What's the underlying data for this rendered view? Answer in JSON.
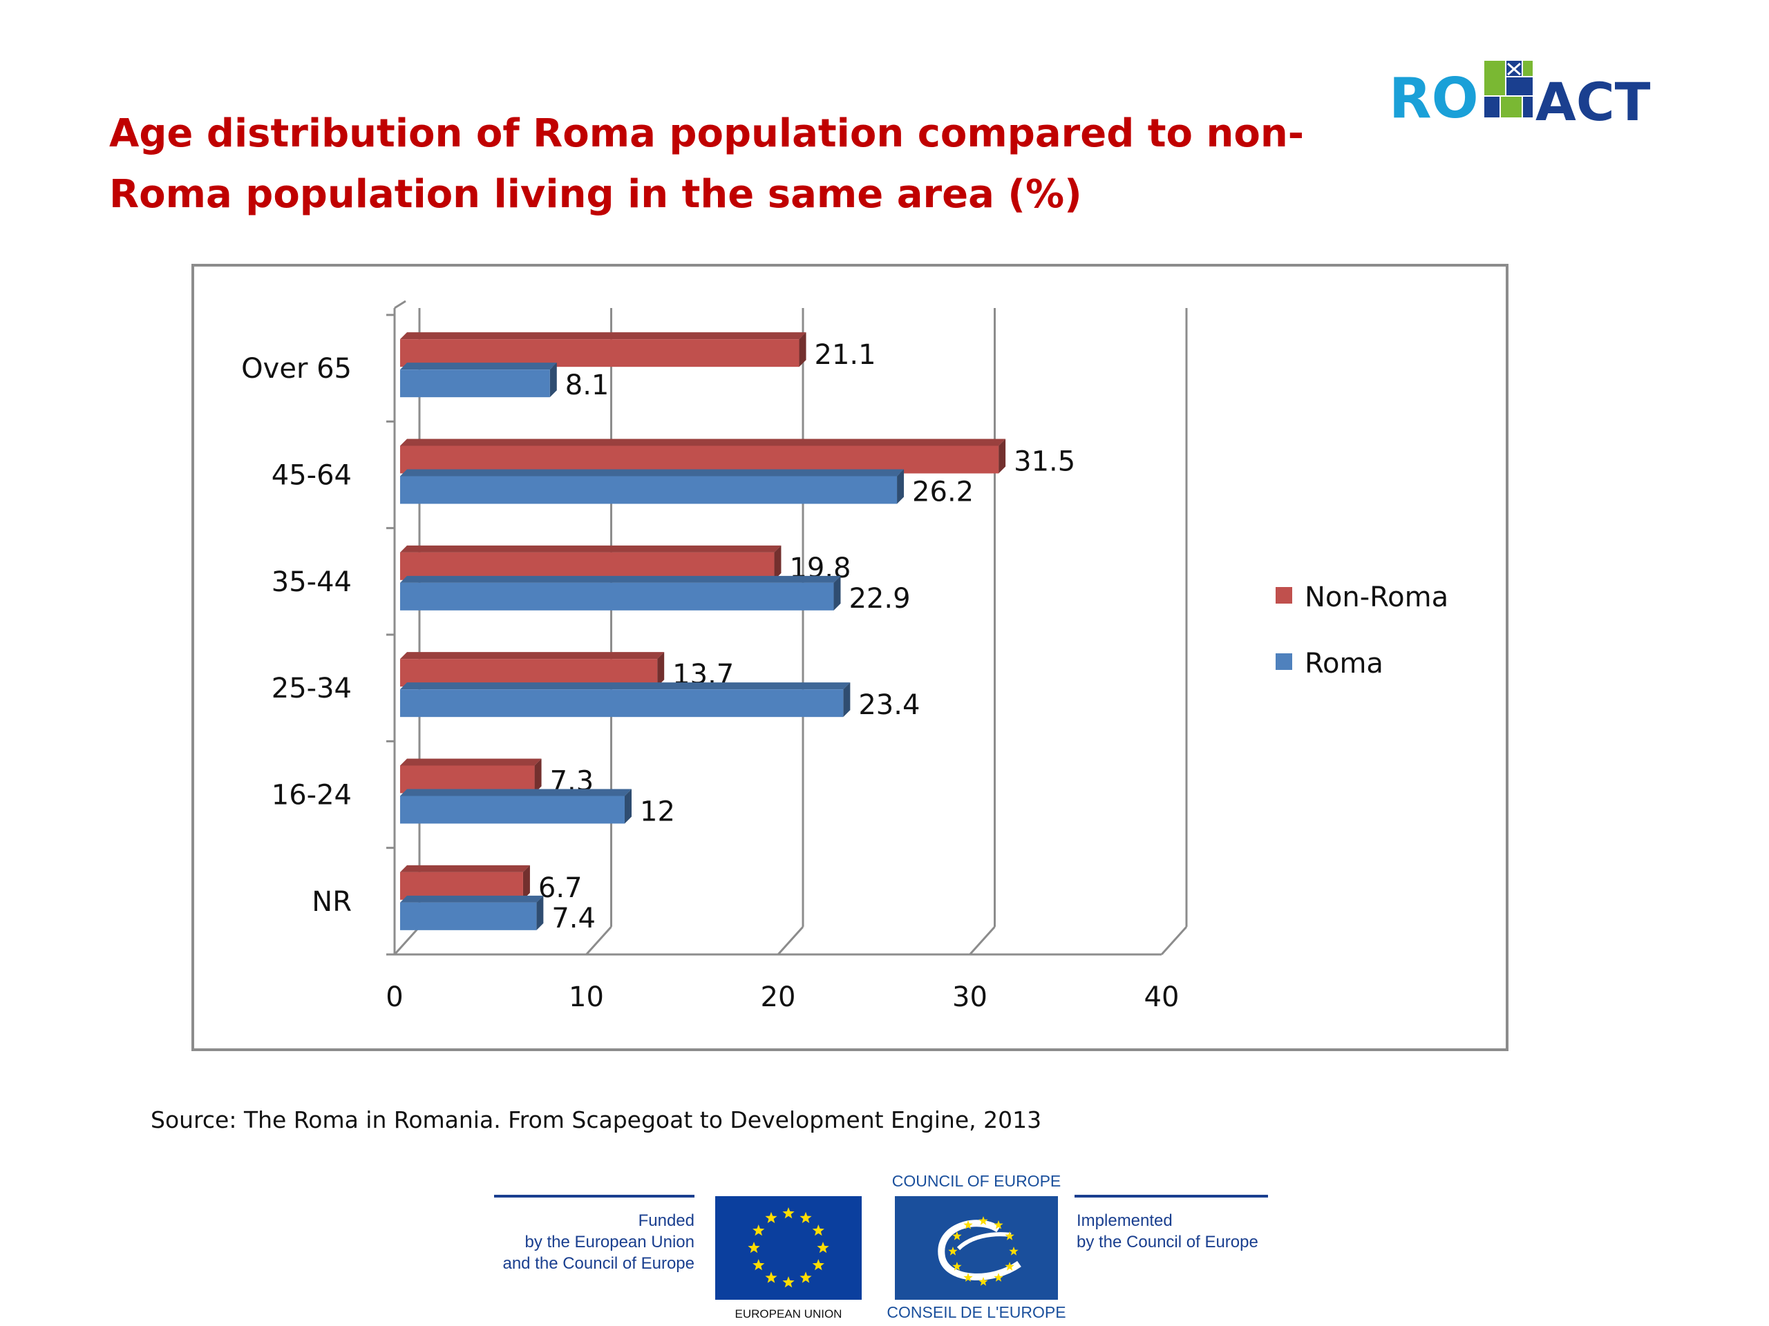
{
  "logo": {
    "part1": "RO",
    "part2": "ACT",
    "colors": {
      "ro": "#1aa0d8",
      "act": "#1a3f8f",
      "mosaic_green": "#7ab833",
      "mosaic_blue": "#1a3f8f"
    }
  },
  "title": "Age distribution of Roma population compared to non-Roma population living in the same area (%)",
  "chart_data": {
    "type": "bar",
    "orientation": "horizontal",
    "categories": [
      "Over  65",
      "45-64",
      "35-44",
      "25-34",
      "16-24",
      "NR"
    ],
    "series": [
      {
        "name": "Non-Roma",
        "color": "#c0504d",
        "values": [
          21.1,
          31.5,
          19.8,
          13.7,
          7.3,
          6.7
        ],
        "labels": [
          "21.1",
          "31.5",
          "19.8",
          "13.7",
          "7.3",
          "6.7"
        ]
      },
      {
        "name": "Roma",
        "color": "#4f81bd",
        "values": [
          8.1,
          26.2,
          22.9,
          23.4,
          12,
          7.4
        ],
        "labels": [
          "8.1",
          "26.2",
          "22.9",
          "23.4",
          "12",
          "7.4"
        ]
      }
    ],
    "xlim": [
      0,
      40
    ],
    "xticks": [
      "0",
      "10",
      "20",
      "30",
      "40"
    ],
    "grid": true,
    "legend": "right"
  },
  "source": "Source: The Roma in Romania. From Scapegoat to Development Engine, 2013",
  "footer": {
    "funded_lines": [
      "Funded",
      "by the European Union",
      "and the Council of Europe"
    ],
    "eu_label": "EUROPEAN UNION",
    "coe_top": "COUNCIL OF EUROPE",
    "coe_bottom": "CONSEIL DE L'EUROPE",
    "implemented_lines": [
      "Implemented",
      "by the Council of Europe"
    ],
    "colors": {
      "eu_flag": "#0b3f9e",
      "stars": "#ffdd00",
      "coe_blue": "#1a4f9c",
      "rule": "#1a3f8f"
    }
  }
}
